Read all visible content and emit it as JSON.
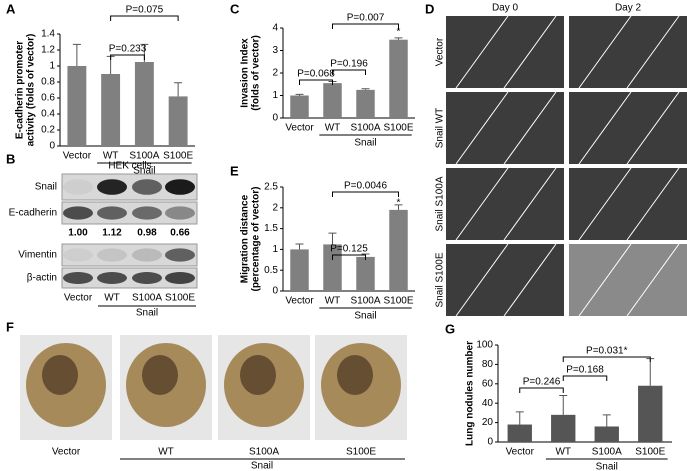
{
  "chart_data": [
    {
      "type": "bar",
      "panel_label": "A",
      "ylabel": [
        "E-cadherin promoter",
        "activity (folds of vector)"
      ],
      "categories": [
        "Vector",
        "WT",
        "S100A",
        "S100E"
      ],
      "group_label": "Snail",
      "color": "#808080",
      "values": [
        1.0,
        0.9,
        1.05,
        0.62
      ],
      "errors": [
        0.27,
        0.22,
        0.22,
        0.17
      ],
      "ylim": [
        0,
        1.4
      ],
      "yticks": [
        0,
        0.2,
        0.4,
        0.6,
        0.8,
        1,
        1.2,
        1.4
      ],
      "annotations": [
        "P=0.233",
        "P=0.075"
      ]
    },
    {
      "type": "bar",
      "panel_label": "C",
      "ylabel": [
        "Invasion Index",
        "(folds of vector)"
      ],
      "categories": [
        "Vector",
        "WT",
        "S100A",
        "S100E"
      ],
      "group_label": "Snail",
      "color": "#808080",
      "values": [
        1.0,
        1.55,
        1.25,
        3.48
      ],
      "errors": [
        0.05,
        0.07,
        0.05,
        0.08
      ],
      "ylim": [
        0,
        4
      ],
      "yticks": [
        0,
        1,
        2,
        3,
        4
      ],
      "annotations": [
        "P=0.068",
        "P=0.196",
        "P=0.007",
        "*"
      ]
    },
    {
      "type": "bar",
      "panel_label": "E",
      "ylabel": [
        "Migration distance",
        "(percentage of vector)"
      ],
      "categories": [
        "Vector",
        "WT",
        "S100A",
        "S100E"
      ],
      "group_label": "Snail",
      "color": "#808080",
      "values": [
        1.0,
        1.12,
        0.82,
        1.95
      ],
      "errors": [
        0.13,
        0.27,
        0.07,
        0.12
      ],
      "ylim": [
        0,
        2.5
      ],
      "yticks": [
        0,
        0.5,
        1,
        1.5,
        2,
        2.5
      ],
      "annotations": [
        "P=0.125",
        "P=0.0046",
        "*"
      ]
    },
    {
      "type": "bar",
      "panel_label": "G",
      "ylabel": [
        "Lung nodules number"
      ],
      "categories": [
        "Vector",
        "WT",
        "S100A",
        "S100E"
      ],
      "group_label": "Snail",
      "color": "#555555",
      "values": [
        18,
        28,
        16,
        58
      ],
      "errors": [
        13,
        20,
        12,
        28
      ],
      "ylim": [
        0,
        100
      ],
      "yticks": [
        0,
        20,
        40,
        60,
        80,
        100
      ],
      "annotations": [
        "P=0.246",
        "P=0.168",
        "P=0.031*"
      ]
    }
  ],
  "blot": {
    "panel_label": "B",
    "title": "HEK cells",
    "rows": [
      "Snail",
      "E-cadherin",
      "Vimentin",
      "β-actin"
    ],
    "quantification": [
      "1.00",
      "1.12",
      "0.98",
      "0.66"
    ],
    "lanes": [
      "Vector",
      "WT",
      "S100A",
      "S100E"
    ],
    "group_label": "Snail"
  },
  "scratch": {
    "panel_label": "D",
    "columns": [
      "Day 0",
      "Day 2"
    ],
    "rows": [
      "Vector",
      "Snail WT",
      "Snail S100A",
      "Snail S100E"
    ]
  },
  "lungs": {
    "panel_label": "F",
    "labels": [
      "Vector",
      "WT",
      "S100A",
      "S100E"
    ],
    "group_label": "Snail"
  }
}
